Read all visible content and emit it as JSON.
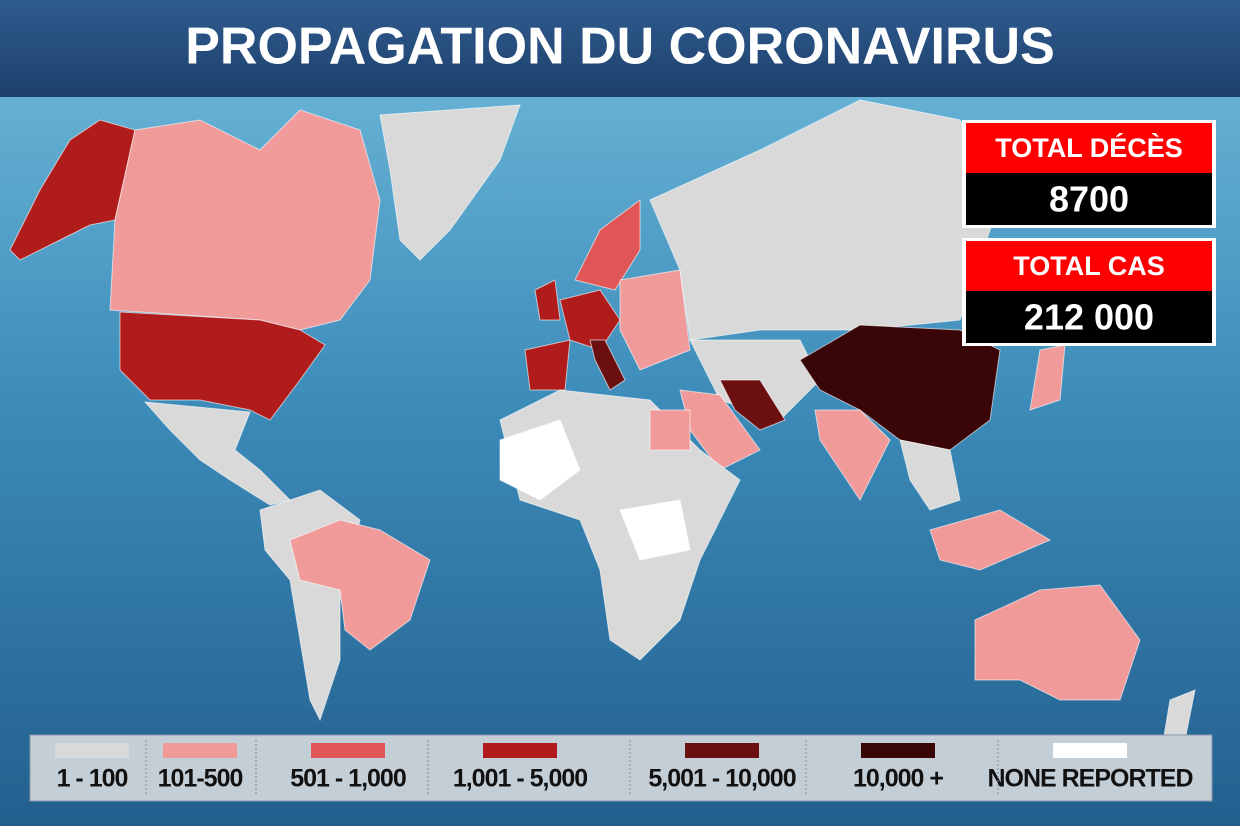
{
  "header": {
    "title": "PROPAGATION DU CORONAVIRUS"
  },
  "stats": [
    {
      "label": "TOTAL DÉCÈS",
      "value": "8700"
    },
    {
      "label": "TOTAL CAS",
      "value": "212 000"
    }
  ],
  "legend": [
    {
      "label": "1 - 100",
      "color": "#d9d9d9"
    },
    {
      "label": "101-500",
      "color": "#f09a9a"
    },
    {
      "label": "501 - 1,000",
      "color": "#e05555"
    },
    {
      "label": "1,001 - 5,000",
      "color": "#b01c1c"
    },
    {
      "label": "5,001 - 10,000",
      "color": "#6b0f10"
    },
    {
      "label": "10,000 +",
      "color": "#3a0507"
    },
    {
      "label": "NONE REPORTED",
      "color": "#ffffff"
    }
  ]
}
